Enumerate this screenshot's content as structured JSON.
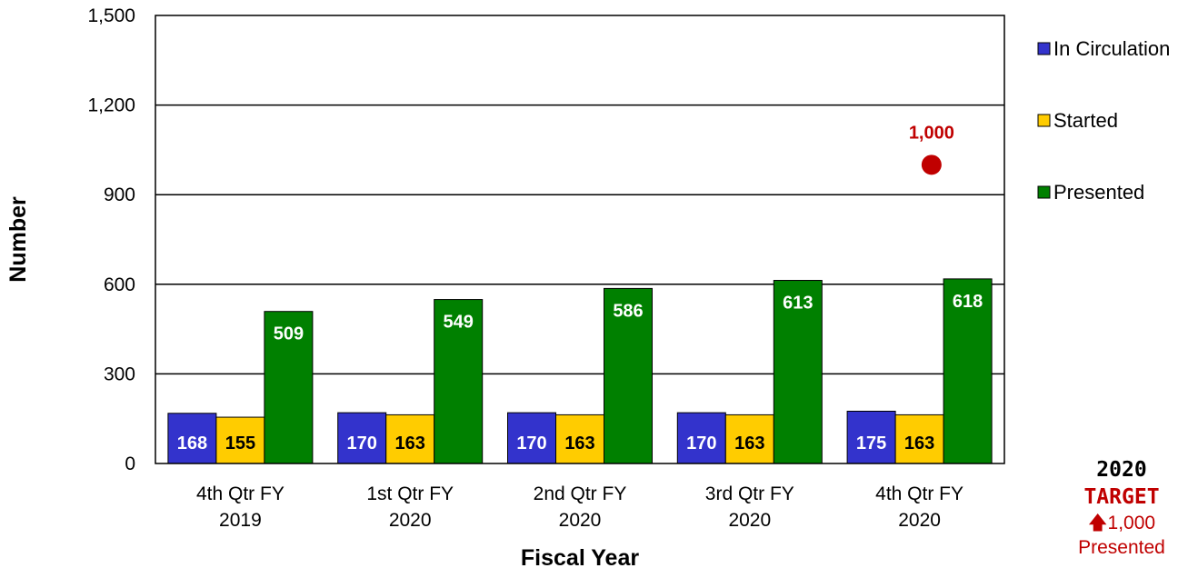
{
  "colors": {
    "in_circulation": "#3333cc",
    "started": "#ffcc00",
    "presented": "#008000",
    "target": "#c00000",
    "gridline": "#000000"
  },
  "chart_data": {
    "type": "bar",
    "xlabel": "Fiscal Year",
    "ylabel": "Number",
    "ylim": [
      0,
      1500
    ],
    "yticks": [
      0,
      300,
      600,
      900,
      1200,
      1500
    ],
    "ytick_labels": [
      "0",
      "300",
      "600",
      "900",
      "1,200",
      "1,500"
    ],
    "grid": "horizontal",
    "legend_position": "right",
    "categories": [
      [
        "4th Qtr FY",
        "2019"
      ],
      [
        "1st Qtr FY",
        "2020"
      ],
      [
        "2nd Qtr FY",
        "2020"
      ],
      [
        "3rd Qtr FY",
        "2020"
      ],
      [
        "4th Qtr FY",
        "2020"
      ]
    ],
    "series": [
      {
        "name": "In Circulation",
        "values": [
          168,
          170,
          170,
          170,
          175
        ],
        "labels": [
          "168",
          "170",
          "170",
          "170",
          "175"
        ]
      },
      {
        "name": "Started",
        "values": [
          155,
          163,
          163,
          163,
          163
        ],
        "labels": [
          "155",
          "163",
          "163",
          "163",
          "163"
        ]
      },
      {
        "name": "Presented",
        "values": [
          509,
          549,
          586,
          613,
          618
        ],
        "labels": [
          "509",
          "549",
          "586",
          "613",
          "618"
        ]
      }
    ],
    "target": {
      "category_index": 4,
      "value": 1000,
      "label": "1,000"
    }
  },
  "target_box": {
    "line1": "2020",
    "line2": "TARGET",
    "arrow": "🡅",
    "value": "1,000",
    "measure": "Presented"
  }
}
